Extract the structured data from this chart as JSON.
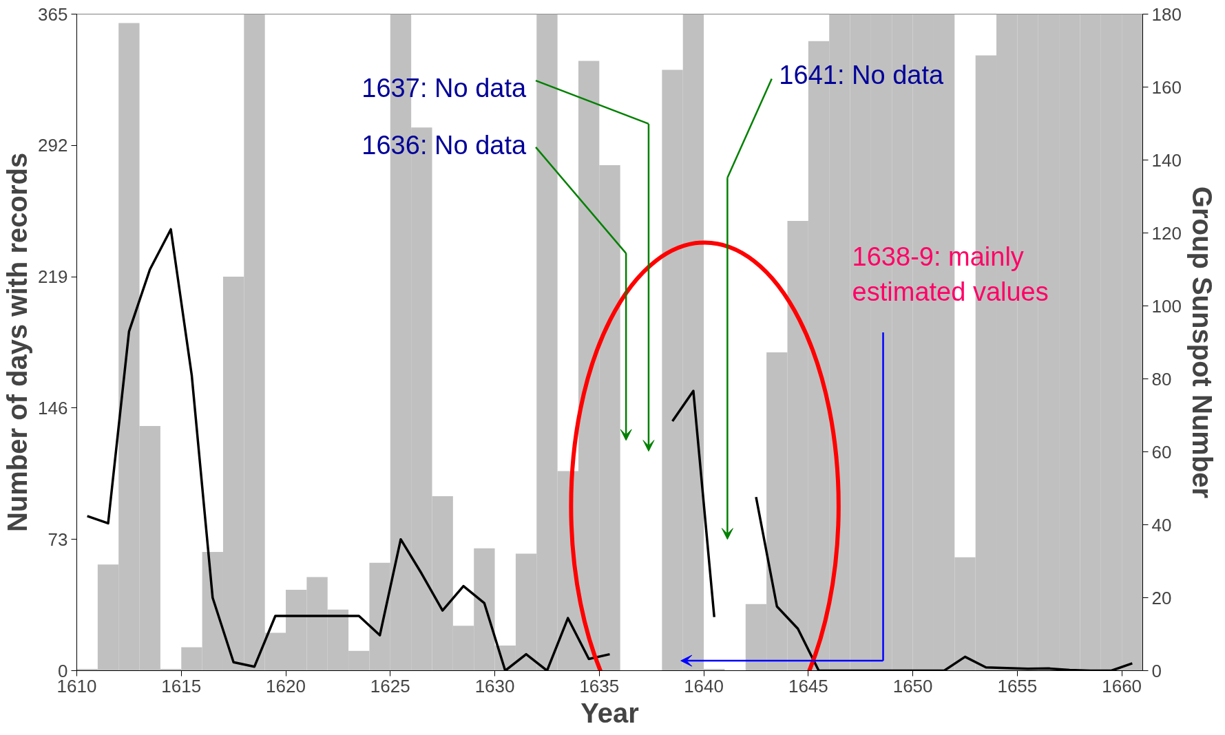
{
  "chart_data": {
    "type": "bar",
    "xlabel": "Year",
    "ylabel": "Number of days with records",
    "y2label": "Group Sunspot Number",
    "x": [
      1610.5,
      1611.5,
      1612.5,
      1613.5,
      1614.5,
      1615.5,
      1616.5,
      1617.5,
      1618.5,
      1619.5,
      1620.5,
      1621.5,
      1622.5,
      1623.5,
      1624.5,
      1625.5,
      1626.5,
      1627.5,
      1628.5,
      1629.5,
      1630.5,
      1631.5,
      1632.5,
      1633.5,
      1634.5,
      1635.5,
      1636.5,
      1637.5,
      1638.5,
      1639.5,
      1640.5,
      1641.5,
      1642.5,
      1643.5,
      1644.5,
      1645.5,
      1646.5,
      1647.5,
      1648.5,
      1649.5,
      1650.5,
      1651.5,
      1652.5,
      1653.5,
      1654.5,
      1655.5,
      1656.5,
      1657.5,
      1658.5,
      1659.5,
      1660.5
    ],
    "series": [
      {
        "color": "#c0c0c0",
        "values": [
          1,
          59,
          360,
          136,
          1,
          13,
          66,
          219,
          365,
          21,
          45,
          52,
          34,
          11,
          60,
          365,
          302,
          97,
          25,
          68,
          14,
          65,
          365,
          111,
          339,
          281,
          0,
          0,
          334,
          365,
          1,
          0,
          37,
          177,
          250,
          350,
          365,
          365,
          365,
          365,
          365,
          365,
          63,
          342,
          365,
          365,
          365,
          365,
          365,
          365,
          365
        ]
      },
      {
        "type": "line",
        "axis": "y2",
        "color": "#000000",
        "values": [
          42.4,
          40.4,
          93,
          110,
          121,
          81,
          20,
          2.3,
          1.1,
          15,
          15,
          15,
          15,
          15,
          9.7,
          36,
          26.6,
          16.5,
          23.2,
          18.5,
          0,
          4.5,
          0,
          14.4,
          3.2,
          4.5,
          null,
          null,
          68.4,
          76.7,
          14.7,
          null,
          47.6,
          17.6,
          11.5,
          0,
          0,
          0,
          0,
          0,
          0,
          0,
          3.8,
          0.9,
          0.7,
          0.5,
          0.6,
          0.2,
          0,
          0,
          2
        ]
      }
    ],
    "xlim": [
      1610,
      1661
    ],
    "xticks": [
      1610,
      1615,
      1620,
      1625,
      1630,
      1635,
      1640,
      1645,
      1650,
      1655,
      1660
    ],
    "ylim": [
      0,
      365
    ],
    "yticks": [
      0,
      73,
      146,
      219,
      292,
      365
    ],
    "y2lim": [
      0,
      180
    ],
    "y2ticks": [
      0,
      20,
      40,
      60,
      80,
      100,
      120,
      140,
      160,
      180
    ],
    "grid": false,
    "annotations": [
      "1637: No data",
      "1636: No data",
      "1641: No data",
      "1638-9: mainly\nestimated values"
    ]
  }
}
